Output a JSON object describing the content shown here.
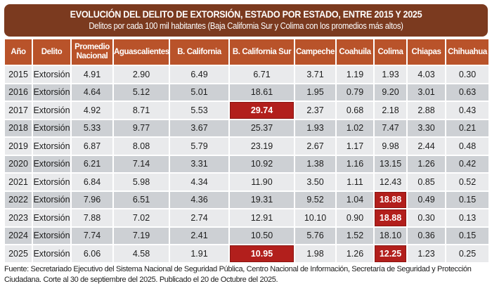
{
  "title": {
    "main": "EVOLUCIÓN DEL DELITO DE EXTORSIÓN, ESTADO POR ESTADO, ENTRE 2015 Y 2025",
    "subtitle": "Delitos por cada 100 mil habitantes (Baja California Sur y Colima con los promedios más altos)"
  },
  "colors": {
    "title_bg": "#7b3a1f",
    "header_bg": "#b9532a",
    "row_light": "#e9eaec",
    "row_dark": "#cdd0d4",
    "highlight": "#b21f1c"
  },
  "table": {
    "headers": [
      "Año",
      "Delito",
      "Promedio Nacional",
      "Aguascalientes",
      "B. California",
      "B. California Sur",
      "Campeche",
      "Coahuila",
      "Colima",
      "Chiapas",
      "Chihuahua"
    ],
    "rows": [
      {
        "cells": [
          "2015",
          "Extorsión",
          "4.91",
          "2.90",
          "6.49",
          "6.71",
          "3.71",
          "1.19",
          "1.93",
          "4.03",
          "0.30"
        ],
        "highlight": []
      },
      {
        "cells": [
          "2016",
          "Extorsión",
          "4.64",
          "5.12",
          "5.01",
          "18.61",
          "1.95",
          "0.79",
          "9.20",
          "3.01",
          "0.63"
        ],
        "highlight": []
      },
      {
        "cells": [
          "2017",
          "Extorsión",
          "4.92",
          "8.71",
          "5.53",
          "29.74",
          "2.37",
          "0.68",
          "2.18",
          "2.88",
          "0.43"
        ],
        "highlight": [
          5
        ]
      },
      {
        "cells": [
          "2018",
          "Extorsión",
          "5.33",
          "9.77",
          "3.67",
          "25.37",
          "1.93",
          "1.02",
          "7.47",
          "3.30",
          "0.21"
        ],
        "highlight": []
      },
      {
        "cells": [
          "2019",
          "Extorsión",
          "6.87",
          "8.08",
          "5.79",
          "23.19",
          "2.67",
          "1.17",
          "9.98",
          "2.44",
          "0.48"
        ],
        "highlight": []
      },
      {
        "cells": [
          "2020",
          "Extorsión",
          "6.21",
          "7.14",
          "3.31",
          "10.92",
          "1.38",
          "1.16",
          "13.15",
          "1.26",
          "0.42"
        ],
        "highlight": []
      },
      {
        "cells": [
          "2021",
          "Extorsión",
          "6.84",
          "5.98",
          "4.34",
          "11.90",
          "3.50",
          "1.11",
          "12.43",
          "0.85",
          "0.52"
        ],
        "highlight": []
      },
      {
        "cells": [
          "2022",
          "Extorsión",
          "7.96",
          "6.51",
          "4.36",
          "19.31",
          "9.52",
          "1.04",
          "18.88",
          "0.49",
          "0.15"
        ],
        "highlight": [
          8
        ]
      },
      {
        "cells": [
          "2023",
          "Extorsión",
          "7.88",
          "7.02",
          "2.74",
          "12.91",
          "10.10",
          "0.90",
          "18.88",
          "0.30",
          "0.13"
        ],
        "highlight": [
          8
        ]
      },
      {
        "cells": [
          "2024",
          "Extorsión",
          "7.74",
          "7.19",
          "2.41",
          "10.50",
          "5.76",
          "1.52",
          "18.10",
          "0.36",
          "0.15"
        ],
        "highlight": []
      },
      {
        "cells": [
          "2025",
          "Extorsión",
          "6.06",
          "4.58",
          "1.91",
          "10.95",
          "1.98",
          "1.26",
          "12.25",
          "1.23",
          "0.25"
        ],
        "highlight": [
          5,
          8
        ]
      }
    ]
  },
  "footer": {
    "source": "Fuente: Secretariado Ejecutivo del Sistema Nacional de Seguridad Pública, Centro Nacional de Información, Secretaría de Seguridad y Protección Ciudadana. Corte al 30 de septiembre del 2025. Publicado el 20 de Octubre del 2025."
  }
}
